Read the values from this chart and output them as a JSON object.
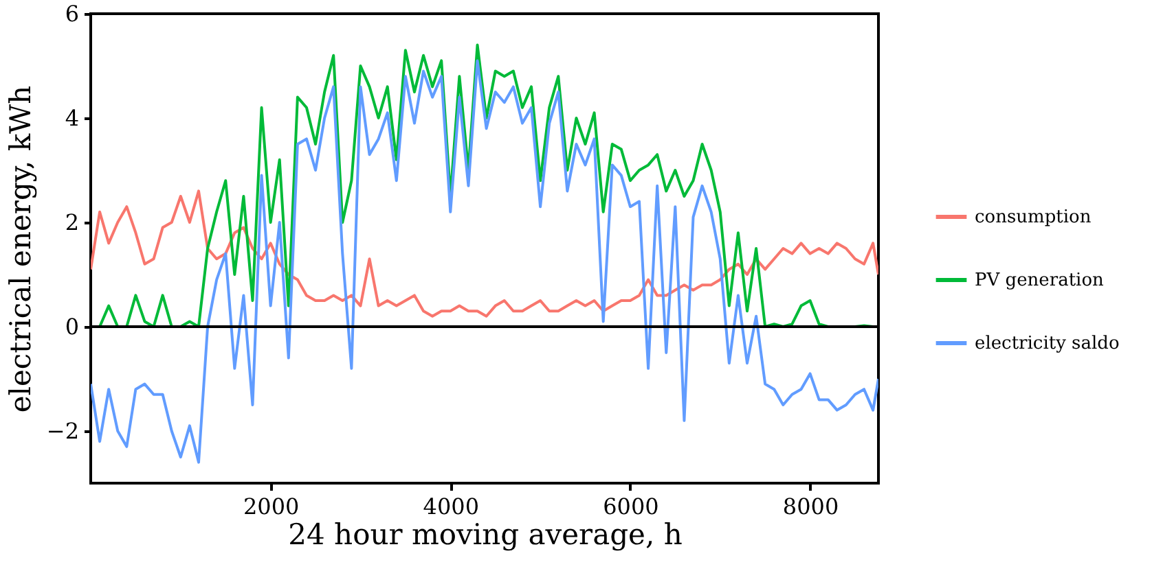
{
  "chart_data": {
    "type": "line",
    "xlabel": "24 hour moving average, h",
    "ylabel": "electrical energy, kWh",
    "x": [
      0,
      100,
      200,
      300,
      400,
      500,
      600,
      700,
      800,
      900,
      1000,
      1100,
      1200,
      1300,
      1400,
      1500,
      1600,
      1700,
      1800,
      1900,
      2000,
      2100,
      2200,
      2300,
      2400,
      2500,
      2600,
      2700,
      2800,
      2900,
      3000,
      3100,
      3200,
      3300,
      3400,
      3500,
      3600,
      3700,
      3800,
      3900,
      4000,
      4100,
      4200,
      4300,
      4400,
      4500,
      4600,
      4700,
      4800,
      4900,
      5000,
      5100,
      5200,
      5300,
      5400,
      5500,
      5600,
      5700,
      5800,
      5900,
      6000,
      6100,
      6200,
      6300,
      6400,
      6500,
      6600,
      6700,
      6800,
      6900,
      7000,
      7100,
      7200,
      7300,
      7400,
      7500,
      7600,
      7700,
      7800,
      7900,
      8000,
      8100,
      8200,
      8300,
      8400,
      8500,
      8600,
      8700,
      8760
    ],
    "series": [
      {
        "name": "consumption",
        "color": "#f8766d",
        "values": [
          1.1,
          2.2,
          1.6,
          2.0,
          2.3,
          1.8,
          1.2,
          1.3,
          1.9,
          2.0,
          2.5,
          2.0,
          2.6,
          1.5,
          1.3,
          1.4,
          1.8,
          1.9,
          1.5,
          1.3,
          1.6,
          1.2,
          1.0,
          0.9,
          0.6,
          0.5,
          0.5,
          0.6,
          0.5,
          0.6,
          0.4,
          1.3,
          0.4,
          0.5,
          0.4,
          0.5,
          0.6,
          0.3,
          0.2,
          0.3,
          0.3,
          0.4,
          0.3,
          0.3,
          0.2,
          0.4,
          0.5,
          0.3,
          0.3,
          0.4,
          0.5,
          0.3,
          0.3,
          0.4,
          0.5,
          0.4,
          0.5,
          0.3,
          0.4,
          0.5,
          0.5,
          0.6,
          0.9,
          0.6,
          0.6,
          0.7,
          0.8,
          0.7,
          0.8,
          0.8,
          0.9,
          1.1,
          1.2,
          1.0,
          1.3,
          1.1,
          1.3,
          1.5,
          1.4,
          1.6,
          1.4,
          1.5,
          1.4,
          1.6,
          1.5,
          1.3,
          1.2,
          1.6,
          1.0
        ]
      },
      {
        "name": "PV generation",
        "color": "#00ba38",
        "values": [
          0,
          0,
          0.4,
          0,
          0,
          0.6,
          0.1,
          0,
          0.6,
          0,
          0,
          0.1,
          0,
          1.5,
          2.2,
          2.8,
          1.0,
          2.5,
          0.5,
          4.2,
          2.0,
          3.2,
          0.4,
          4.4,
          4.2,
          3.5,
          4.5,
          5.2,
          2.0,
          2.8,
          5.0,
          4.6,
          4.0,
          4.6,
          3.2,
          5.3,
          4.5,
          5.2,
          4.6,
          5.1,
          2.5,
          4.8,
          3.0,
          5.4,
          4.0,
          4.9,
          4.8,
          4.9,
          4.2,
          4.6,
          2.8,
          4.2,
          4.8,
          3.0,
          4.0,
          3.5,
          4.1,
          2.2,
          3.5,
          3.4,
          2.8,
          3.0,
          3.1,
          3.3,
          2.6,
          3.0,
          2.5,
          2.8,
          3.5,
          3.0,
          2.2,
          0.4,
          1.8,
          0.3,
          1.5,
          0,
          0.05,
          0,
          0.05,
          0.4,
          0.5,
          0.05,
          0,
          0,
          0,
          0,
          0.02,
          0,
          0
        ]
      },
      {
        "name": "electricity saldo",
        "color": "#619cff",
        "values": [
          -1.1,
          -2.2,
          -1.2,
          -2.0,
          -2.3,
          -1.2,
          -1.1,
          -1.3,
          -1.3,
          -2.0,
          -2.5,
          -1.9,
          -2.6,
          0.0,
          0.9,
          1.4,
          -0.8,
          0.6,
          -1.5,
          2.9,
          0.4,
          2.0,
          -0.6,
          3.5,
          3.6,
          3.0,
          4.0,
          4.6,
          1.4,
          -0.8,
          4.6,
          3.3,
          3.6,
          4.1,
          2.8,
          4.8,
          3.9,
          4.9,
          4.4,
          4.8,
          2.2,
          4.4,
          2.7,
          5.1,
          3.8,
          4.5,
          4.3,
          4.6,
          3.9,
          4.2,
          2.3,
          3.9,
          4.5,
          2.6,
          3.5,
          3.1,
          3.6,
          0.1,
          3.1,
          2.9,
          2.3,
          2.4,
          -0.8,
          2.7,
          -0.5,
          2.3,
          -1.8,
          2.1,
          2.7,
          2.2,
          1.3,
          -0.7,
          0.6,
          -0.7,
          0.2,
          -1.1,
          -1.2,
          -1.5,
          -1.3,
          -1.2,
          -0.9,
          -1.4,
          -1.4,
          -1.6,
          -1.5,
          -1.3,
          -1.2,
          -1.6,
          -1.0
        ]
      }
    ],
    "xlim": [
      0,
      8760
    ],
    "xticks": [
      2000,
      4000,
      6000,
      8000
    ],
    "ylim": [
      -3,
      6
    ],
    "yticks": [
      -2,
      0,
      2,
      4,
      6
    ],
    "ref_lines": [
      {
        "axis": "y",
        "value": 0,
        "color": "#000000"
      }
    ],
    "grid": false,
    "legend": "right",
    "line_style": "solid",
    "marker": "none"
  }
}
